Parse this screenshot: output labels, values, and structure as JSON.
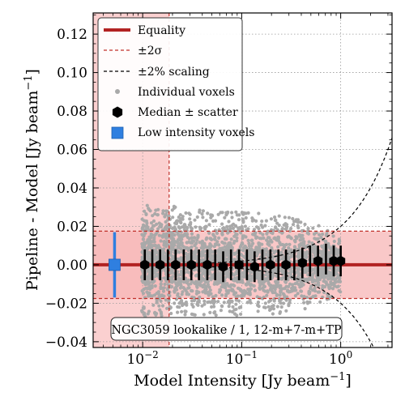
{
  "chart_data": {
    "type": "scatter",
    "xlabel": "Model Intensity [Jy beam$^{-1}$]",
    "ylabel": "Pipeline - Model [Jy beam$^{-1}$]",
    "xscale": "log",
    "xlim": [
      0.00316,
      3.3
    ],
    "ylim": [
      -0.043,
      0.131
    ],
    "xticks": [
      {
        "value": 0.01,
        "label": "10",
        "exp": "−2"
      },
      {
        "value": 0.1,
        "label": "10",
        "exp": "−1"
      },
      {
        "value": 1,
        "label": "10",
        "exp": "0"
      }
    ],
    "yticks": [
      {
        "value": -0.04,
        "label": "−0.04"
      },
      {
        "value": -0.02,
        "label": "−0.02"
      },
      {
        "value": 0.0,
        "label": "0.00"
      },
      {
        "value": 0.02,
        "label": "0.02"
      },
      {
        "value": 0.04,
        "label": "0.04"
      },
      {
        "value": 0.06,
        "label": "0.06"
      },
      {
        "value": 0.08,
        "label": "0.08"
      },
      {
        "value": 0.1,
        "label": "0.10"
      },
      {
        "value": 0.12,
        "label": "0.12"
      }
    ],
    "grid": true,
    "legend_position": "top-left",
    "legend": [
      {
        "label": "Equality",
        "kind": "thick-line"
      },
      {
        "label": "±2σ",
        "kind": "dashed-red"
      },
      {
        "label": "±2% scaling",
        "kind": "dashed-black"
      },
      {
        "label": "Individual voxels",
        "kind": "gray-dot"
      },
      {
        "label": "Median ± scatter",
        "kind": "black-hexagon"
      },
      {
        "label": "Low intensity voxels",
        "kind": "blue-square"
      }
    ],
    "annotation": "NGC3059 lookalike / 1, 12-m+7-m+TP",
    "sigma2": 0.0175,
    "scaling_fraction": 0.02,
    "low_intensity_threshold": 0.0185,
    "median_series": {
      "x": [
        0.0105,
        0.0125,
        0.015,
        0.018,
        0.0215,
        0.026,
        0.031,
        0.037,
        0.045,
        0.054,
        0.065,
        0.078,
        0.094,
        0.113,
        0.135,
        0.162,
        0.195,
        0.235,
        0.28,
        0.34,
        0.41,
        0.49,
        0.59,
        0.71,
        0.85,
        1.0
      ],
      "y": [
        0.0,
        0.0,
        0.0,
        0.0,
        0.0,
        0.0,
        0.0,
        0.0,
        0.0,
        0.0,
        -0.001,
        0.0,
        0.0,
        0.0,
        -0.001,
        0.0,
        0.0,
        0.0,
        0.0,
        0.0,
        0.001,
        0.002,
        0.002,
        0.003,
        0.002,
        0.002
      ],
      "err": [
        0.008,
        0.008,
        0.008,
        0.008,
        0.008,
        0.008,
        0.008,
        0.008,
        0.008,
        0.008,
        0.008,
        0.008,
        0.008,
        0.008,
        0.008,
        0.008,
        0.008,
        0.008,
        0.008,
        0.008,
        0.008,
        0.008,
        0.008,
        0.008,
        0.008,
        0.008
      ],
      "show_marker": [
        true,
        false,
        true,
        false,
        true,
        false,
        true,
        false,
        true,
        false,
        true,
        false,
        true,
        false,
        true,
        false,
        true,
        false,
        true,
        false,
        true,
        false,
        true,
        false,
        true,
        true
      ]
    },
    "low_intensity_point": {
      "x": 0.0052,
      "y": 0.0,
      "err": 0.017
    },
    "voxel_cloud": {
      "x_range": [
        0.0098,
        1.0
      ],
      "y_upper_edge": [
        {
          "x": 0.0098,
          "y": 0.031
        },
        {
          "x": 0.03,
          "y": 0.03
        },
        {
          "x": 0.1,
          "y": 0.028
        },
        {
          "x": 0.3,
          "y": 0.025
        },
        {
          "x": 0.6,
          "y": 0.021
        },
        {
          "x": 1.0,
          "y": 0.013
        }
      ],
      "y_lower_edge": [
        {
          "x": 0.0098,
          "y": -0.027
        },
        {
          "x": 0.03,
          "y": -0.026
        },
        {
          "x": 0.1,
          "y": -0.027
        },
        {
          "x": 0.3,
          "y": -0.025
        },
        {
          "x": 0.6,
          "y": -0.021
        },
        {
          "x": 1.0,
          "y": -0.014
        }
      ]
    },
    "colors": {
      "equality": "#b22222",
      "sigma_band": "#f7b6b6",
      "low_region": "#fbd0d0",
      "sigma_line": "#c0302a",
      "voxels": "#a9a9a9",
      "median": "#000000",
      "low_point": "#2f7fe0"
    }
  }
}
